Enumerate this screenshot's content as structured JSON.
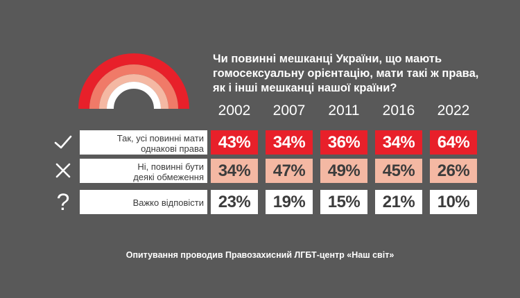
{
  "title": "Чи повинні мешканці України, що мають гомосексуальну орієнтацію, мати такі ж права, як і інші мешканці нашої країни?",
  "footnote": "Опитування проводив Правозахисний ЛГБТ-центр «Наш світ»",
  "colors": {
    "background": "#595959",
    "yes": "#e8202a",
    "no": "#f4b8a3",
    "undecided": "#ffffff",
    "arc_outer": "#e8202a",
    "arc_mid1": "#f07a68",
    "arc_mid2": "#f4b8a3",
    "arc_inner": "#ffffff"
  },
  "chart_data": {
    "type": "table",
    "title": "Чи повинні мешканці України, що мають гомосексуальну орієнтацію, мати такі ж права, як і інші мешканці нашої країни?",
    "categories": [
      "2002",
      "2007",
      "2011",
      "2016",
      "2022"
    ],
    "unit": "%",
    "series": [
      {
        "key": "yes",
        "icon": "checkmark-icon",
        "label_lines": [
          "Так, усі повинні мати",
          "однакові права"
        ],
        "values": [
          43,
          34,
          36,
          34,
          64
        ]
      },
      {
        "key": "no",
        "icon": "cross-icon",
        "label_lines": [
          "Ні, повинні бути",
          "деякі обмеження"
        ],
        "values": [
          34,
          47,
          49,
          45,
          26
        ]
      },
      {
        "key": "undecided",
        "icon": "question-icon",
        "label_lines": [
          "Важко відповісти"
        ],
        "values": [
          23,
          19,
          15,
          21,
          10
        ]
      }
    ]
  }
}
